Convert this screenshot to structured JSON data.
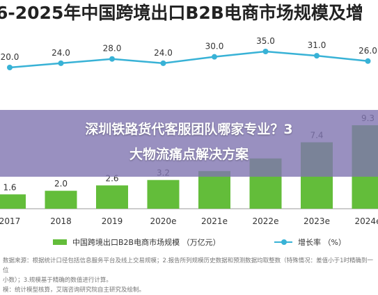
{
  "title": "6-2025年中国跨境出口B2B电商市场规模及增",
  "overlay_text": "深圳铁路货代客服团队哪家专业？3\n大物流痛点解决方案",
  "legend": {
    "bar_label": "中国跨境出口B2B电商市场规模 （万亿元）",
    "line_label": "增长率 （%）"
  },
  "source_note": "数据来源：根据统计口径包括信息服务平台及线上交易规模；2.报告所列规模历史数据和预测数据均取整数（特殊情况：差值小于1时精确到一位\n小数）；3.规模基于精确的数值进行计算。\n模：统计模型核算，艾瑞咨询研究院自主研究及绘制。",
  "chart_data": {
    "type": "bar+line",
    "title": "6-2025年中国跨境出口B2B电商市场规模及增",
    "categories": [
      "2017",
      "2018",
      "2019",
      "2020e",
      "2021e",
      "2022e",
      "2023e",
      "2024e"
    ],
    "series": [
      {
        "name": "中国跨境出口B2B电商市场规模 （万亿元）",
        "type": "bar",
        "color": "#63bd3a",
        "values": [
          1.6,
          2.0,
          2.6,
          3.2,
          4.2,
          5.6,
          7.4,
          9.3
        ],
        "labels": [
          "1.6",
          "2.0",
          "2.6",
          "3.2",
          "",
          "",
          "7.4",
          "9.3"
        ]
      },
      {
        "name": "增长率 （%）",
        "type": "line",
        "color": "#38b2d6",
        "values": [
          20.0,
          24.0,
          28.0,
          24.0,
          30.0,
          35.0,
          31.0,
          26.0
        ],
        "labels": [
          "20.0",
          "24.0",
          "28.0",
          "24.0",
          "30.0",
          "35.0",
          "31.0",
          "26.0"
        ]
      }
    ],
    "bar_ylim": [
      0,
      15
    ],
    "line_ylim": [
      0,
      40
    ],
    "grid": false,
    "legend_position": "bottom"
  }
}
